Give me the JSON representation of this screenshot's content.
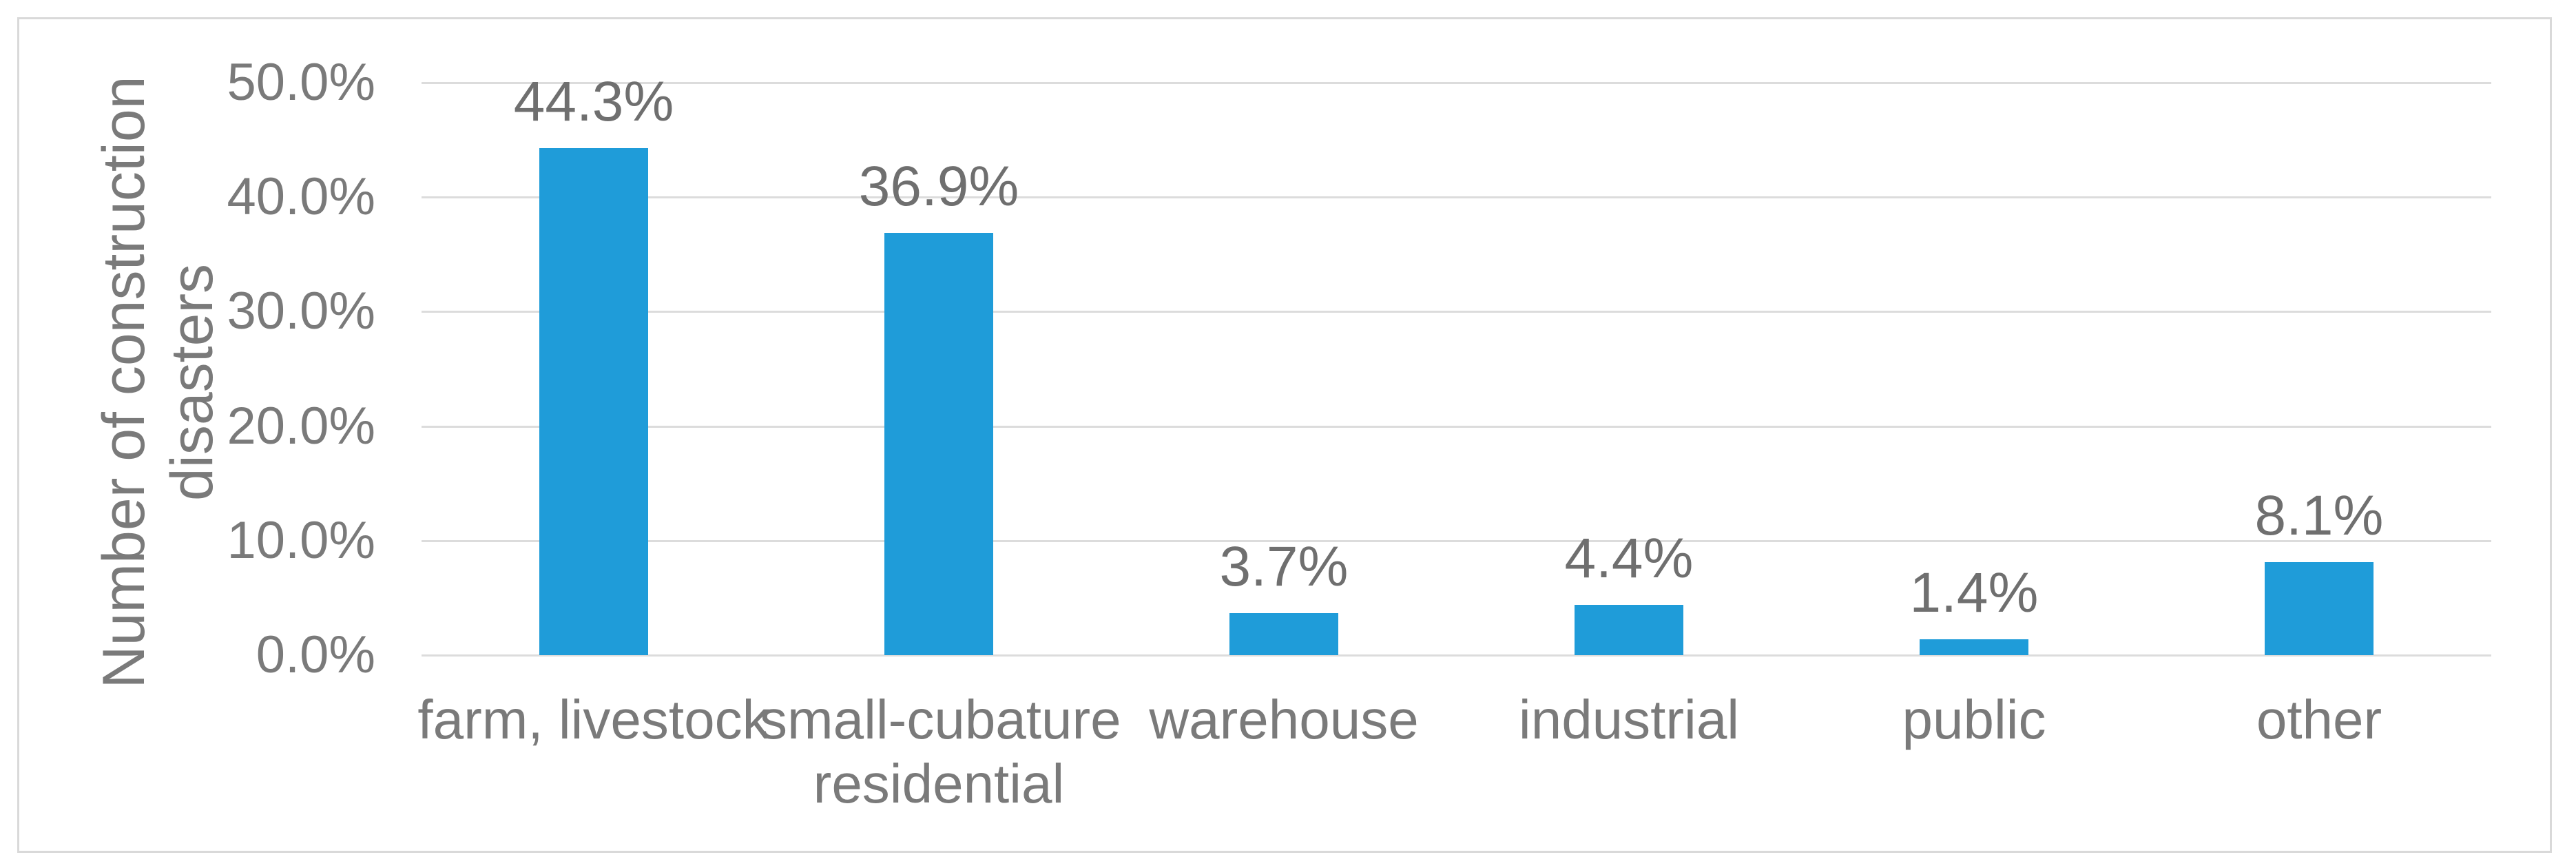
{
  "chart_data": {
    "type": "bar",
    "title": "",
    "xlabel": "",
    "ylabel": "Number of construction\ndisasters",
    "categories": [
      "farm, livestock",
      "small-cubature\nresidential",
      "warehouse",
      "industrial",
      "public",
      "other"
    ],
    "values": [
      44.3,
      36.9,
      3.7,
      4.4,
      1.4,
      8.1
    ],
    "data_labels": [
      "44.3%",
      "36.9%",
      "3.7%",
      "4.4%",
      "1.4%",
      "8.1%"
    ],
    "ylim": [
      0,
      50
    ],
    "ytick_values": [
      0,
      10,
      20,
      30,
      40,
      50
    ],
    "ytick_labels": [
      "0.0%",
      "10.0%",
      "20.0%",
      "30.0%",
      "40.0%",
      "50.0%"
    ],
    "grid": true,
    "legend": false,
    "colors": {
      "bar": "#1F9CD9",
      "gridline": "#DCDCDC",
      "frame_border": "#D9D9D9",
      "axis_text": "#7A7A7A",
      "data_label_text": "#6F6F6F",
      "background": "#FFFFFF"
    }
  }
}
